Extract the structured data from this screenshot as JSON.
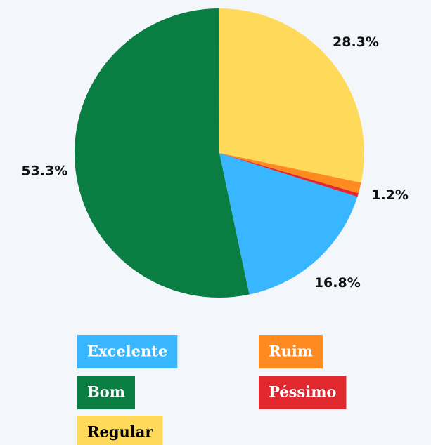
{
  "chart_data": {
    "type": "pie",
    "categories": [
      "Excelente",
      "Bom",
      "Regular",
      "Ruim",
      "Péssimo"
    ],
    "values": [
      16.8,
      53.3,
      28.3,
      1.2,
      0.4
    ],
    "value_labels": [
      "16.8%",
      "53.3%",
      "28.3%",
      "1.2%",
      null
    ],
    "colors": [
      "#38b6ff",
      "#0a7d43",
      "#ffd95a",
      "#ff8a1f",
      "#e1282f"
    ],
    "legend_text_colors": [
      "#ffffff",
      "#ffffff",
      "#000000",
      "#ffffff",
      "#ffffff"
    ],
    "start_angle": 107.6,
    "direction": "clockwise"
  }
}
